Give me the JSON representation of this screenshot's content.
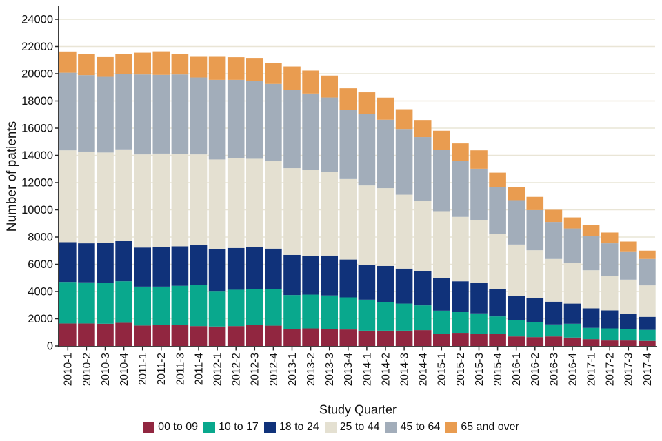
{
  "chart_data": {
    "type": "bar",
    "stacked": true,
    "title": "",
    "xlabel": "Study Quarter",
    "ylabel": "Number of patients",
    "ylim": [
      0,
      24000
    ],
    "ytick_step": 2000,
    "grid": true,
    "legend_position": "bottom",
    "categories": [
      "2010-1",
      "2010-2",
      "2010-3",
      "2010-4",
      "2011-1",
      "2011-2",
      "2011-3",
      "2011-4",
      "2012-1",
      "2012-2",
      "2012-3",
      "2012-4",
      "2013-1",
      "2013-2",
      "2013-3",
      "2013-4",
      "2014-1",
      "2014-2",
      "2014-3",
      "2014-4",
      "2015-1",
      "2015-2",
      "2015-3",
      "2015-4",
      "2016-1",
      "2016-2",
      "2016-3",
      "2016-4",
      "2017-1",
      "2017-2",
      "2017-3",
      "2017-4"
    ],
    "series": [
      {
        "name": "00 to 09",
        "color": "#912640",
        "values": [
          1650,
          1650,
          1630,
          1700,
          1500,
          1520,
          1530,
          1460,
          1430,
          1460,
          1540,
          1490,
          1260,
          1290,
          1260,
          1210,
          1120,
          1120,
          1120,
          1160,
          870,
          960,
          910,
          870,
          700,
          650,
          700,
          620,
          500,
          400,
          400,
          370
        ]
      },
      {
        "name": "10 to 17",
        "color": "#09A88D",
        "values": [
          3050,
          3020,
          3000,
          3050,
          2860,
          2840,
          2890,
          3010,
          2560,
          2670,
          2660,
          2670,
          2480,
          2480,
          2450,
          2360,
          2280,
          2120,
          1990,
          1820,
          1720,
          1520,
          1480,
          1300,
          1200,
          1100,
          880,
          1010,
          830,
          890,
          860,
          810
        ]
      },
      {
        "name": "18 to 24",
        "color": "#10327A",
        "values": [
          2920,
          2870,
          2940,
          2950,
          2870,
          2930,
          2900,
          2930,
          3120,
          3070,
          3050,
          2990,
          2950,
          2840,
          2930,
          2780,
          2530,
          2640,
          2570,
          2530,
          2420,
          2270,
          2230,
          1990,
          1760,
          1750,
          1670,
          1480,
          1430,
          1320,
          1080,
          960
        ]
      },
      {
        "name": "25 to 44",
        "color": "#E4E0D1",
        "values": [
          6750,
          6740,
          6640,
          6740,
          6840,
          6840,
          6780,
          6670,
          6590,
          6580,
          6500,
          6460,
          6370,
          6330,
          6130,
          5910,
          5860,
          5710,
          5430,
          5150,
          4890,
          4730,
          4600,
          4090,
          3790,
          3530,
          3140,
          2990,
          2800,
          2530,
          2530,
          2310
        ]
      },
      {
        "name": "45 to 64",
        "color": "#A2ADBA",
        "values": [
          5700,
          5610,
          5560,
          5530,
          5870,
          5780,
          5840,
          5650,
          5850,
          5770,
          5740,
          5640,
          5750,
          5600,
          5480,
          5100,
          5230,
          5030,
          4830,
          4680,
          4520,
          4100,
          3800,
          3420,
          3260,
          2950,
          2720,
          2530,
          2490,
          2400,
          2080,
          1940
        ]
      },
      {
        "name": "65 and over",
        "color": "#E99C50",
        "values": [
          1560,
          1530,
          1500,
          1450,
          1600,
          1730,
          1500,
          1570,
          1740,
          1660,
          1670,
          1530,
          1720,
          1690,
          1610,
          1570,
          1610,
          1620,
          1450,
          1260,
          1390,
          1300,
          1350,
          1060,
          980,
          970,
          890,
          810,
          840,
          790,
          720,
          610
        ]
      }
    ],
    "axis_color": "#262626",
    "gridline_color": "#E9E5D6"
  }
}
